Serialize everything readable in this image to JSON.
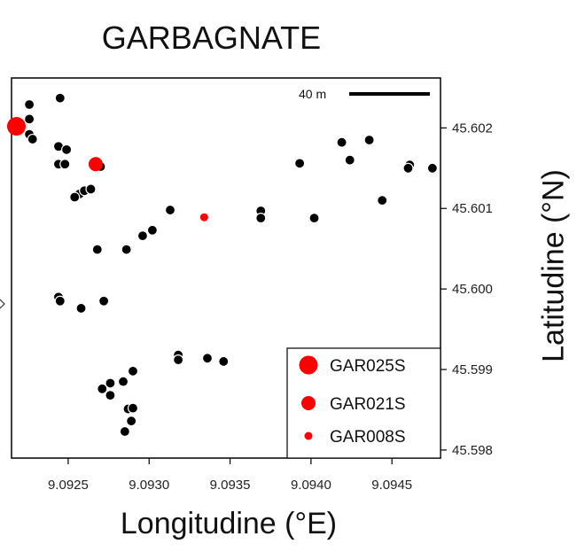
{
  "chart_data": {
    "type": "scatter",
    "title": "GARBAGNATE",
    "xlabel": "Longitudine (°E)",
    "ylabel": "Latitudine (°N)",
    "xlim": [
      9.09215,
      9.0948
    ],
    "ylim": [
      45.5979,
      45.60262
    ],
    "x_ticks": [
      "9.0925",
      "9.0930",
      "9.0935",
      "9.0940",
      "9.0945"
    ],
    "x_tick_values": [
      9.0925,
      9.093,
      9.0935,
      9.094,
      9.0945
    ],
    "y_ticks": [
      "45.598",
      "45.599",
      "45.600",
      "45.601",
      "45.602"
    ],
    "y_tick_values": [
      45.598,
      45.599,
      45.6,
      45.601,
      45.602
    ],
    "scale_bar_label": "40 m",
    "point_color": "#000000",
    "highlight_color": "#ff0000",
    "points": [
      [
        9.09245,
        45.60237
      ],
      [
        9.09226,
        45.60229
      ],
      [
        9.09226,
        45.60211
      ],
      [
        9.09226,
        45.60192
      ],
      [
        9.09228,
        45.60186
      ],
      [
        9.09244,
        45.60177
      ],
      [
        9.09249,
        45.60173
      ],
      [
        9.09244,
        45.60155
      ],
      [
        9.09248,
        45.60155
      ],
      [
        9.0927,
        45.60152
      ],
      [
        9.09257,
        45.60118
      ],
      [
        9.0926,
        45.60122
      ],
      [
        9.09264,
        45.60124
      ],
      [
        9.09254,
        45.60114
      ],
      [
        9.09313,
        45.60098
      ],
      [
        9.09369,
        45.60097
      ],
      [
        9.09369,
        45.60088
      ],
      [
        9.09402,
        45.60088
      ],
      [
        9.09302,
        45.60073
      ],
      [
        9.09296,
        45.60066
      ],
      [
        9.09268,
        45.60049
      ],
      [
        9.09286,
        45.60049
      ],
      [
        9.09244,
        45.5999
      ],
      [
        9.09245,
        45.59985
      ],
      [
        9.09272,
        45.59985
      ],
      [
        9.09258,
        45.59976
      ],
      [
        9.09318,
        45.59918
      ],
      [
        9.09318,
        45.59912
      ],
      [
        9.09336,
        45.59914
      ],
      [
        9.09346,
        45.5991
      ],
      [
        9.0929,
        45.59898
      ],
      [
        9.09276,
        45.59883
      ],
      [
        9.09284,
        45.59885
      ],
      [
        9.09271,
        45.59876
      ],
      [
        9.09276,
        45.59868
      ],
      [
        9.09287,
        45.59851
      ],
      [
        9.0929,
        45.59852
      ],
      [
        9.09289,
        45.59836
      ],
      [
        9.09285,
        45.59823
      ],
      [
        9.09436,
        45.60185
      ],
      [
        9.09419,
        45.60182
      ],
      [
        9.09424,
        45.6016
      ],
      [
        9.09393,
        45.60156
      ],
      [
        9.09461,
        45.60154
      ],
      [
        9.0946,
        45.6015
      ],
      [
        9.09475,
        45.6015
      ],
      [
        9.09444,
        45.6011
      ]
    ],
    "series": [
      {
        "name": "GAR025S",
        "x": 9.09218,
        "y": 45.60202,
        "marker": "large"
      },
      {
        "name": "GAR021S",
        "x": 9.09267,
        "y": 45.60155,
        "marker": "medium"
      },
      {
        "name": "GAR008S",
        "x": 9.09334,
        "y": 45.60089,
        "marker": "small"
      }
    ],
    "legend_position": "bottom-right"
  }
}
